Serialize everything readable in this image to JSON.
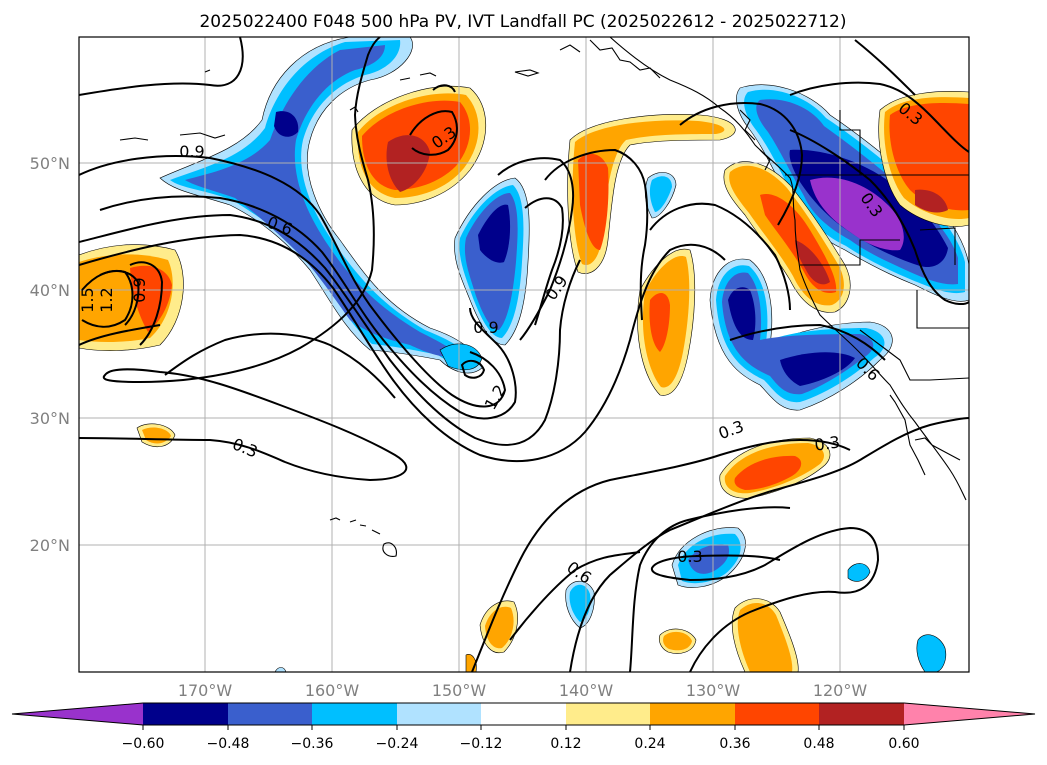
{
  "title": "2025022400 F048 500 hPa PV, IVT Landfall PC (2025022612 - 2025022712)",
  "axes": {
    "lat_labels": [
      "50°N",
      "40°N",
      "30°N",
      "20°N"
    ],
    "lon_labels": [
      "170°W",
      "160°W",
      "150°W",
      "140°W",
      "130°W",
      "120°W"
    ]
  },
  "colorbar": {
    "ticks": [
      "−0.60",
      "−0.48",
      "−0.36",
      "−0.24",
      "−0.12",
      "0.12",
      "0.24",
      "0.36",
      "0.48",
      "0.60"
    ],
    "colors": {
      "lt_neg060": "#9932cc",
      "neg060_048": "#00008b",
      "neg048_036": "#3a5fcd",
      "neg036_024": "#00bfff",
      "neg024_012": "#b0e2ff",
      "neg012_012": "#ffffff",
      "p012_024": "#ffec8b",
      "p024_036": "#ffa500",
      "p036_048": "#ff4500",
      "p048_060": "#b22222",
      "gt_060": "#ff82ab"
    }
  },
  "contour_labels": [
    "0.9",
    "0.6",
    "0.3",
    "0.3",
    "0.9",
    "0.9",
    "1.2",
    "0.3",
    "0.3",
    "0.3",
    "0.6",
    "0.3",
    "0.3",
    "0.6",
    "0.9",
    "1.2",
    "1.5"
  ]
}
